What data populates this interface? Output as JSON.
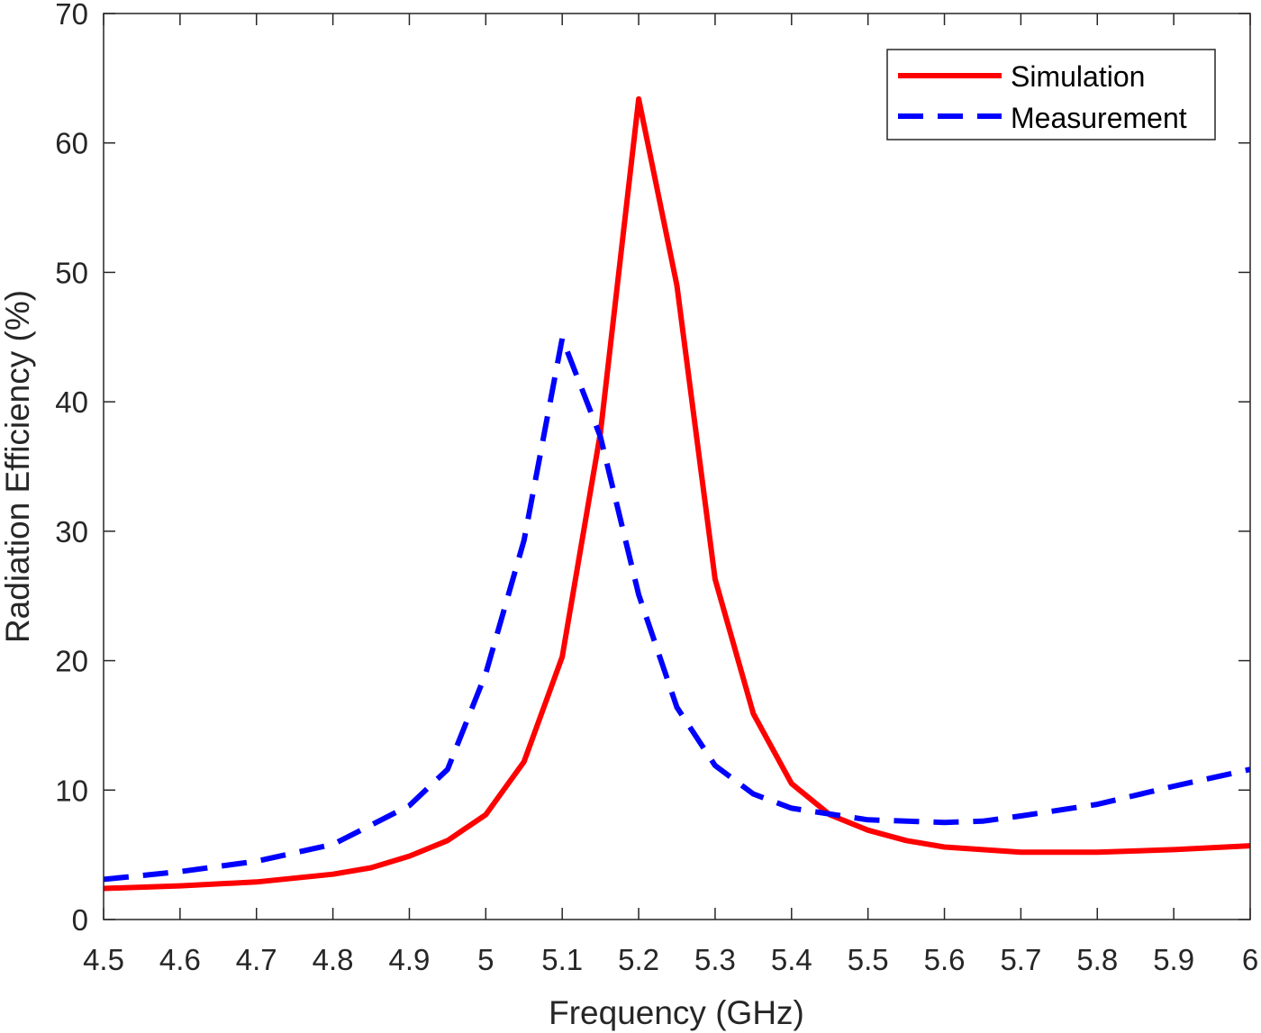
{
  "chart_data": {
    "type": "line",
    "title": "",
    "xlabel": "Frequency (GHz)",
    "ylabel": "Radiation Efficiency (%)",
    "xlim": [
      4.5,
      6
    ],
    "ylim": [
      0,
      70
    ],
    "xticks": [
      "4.5",
      "4.6",
      "4.7",
      "4.8",
      "4.9",
      "5",
      "5.1",
      "5.2",
      "5.3",
      "5.4",
      "5.5",
      "5.6",
      "5.7",
      "5.8",
      "5.9",
      "6"
    ],
    "yticks": [
      "0",
      "10",
      "20",
      "30",
      "40",
      "50",
      "60",
      "70"
    ],
    "grid": false,
    "legend_position": "top-right",
    "series": [
      {
        "name": "Simulation",
        "color": "#ff0000",
        "style": "solid",
        "x": [
          4.5,
          4.6,
          4.7,
          4.8,
          4.85,
          4.9,
          4.95,
          5.0,
          5.05,
          5.1,
          5.15,
          5.2,
          5.25,
          5.3,
          5.35,
          5.4,
          5.45,
          5.5,
          5.55,
          5.6,
          5.7,
          5.8,
          5.9,
          6.0
        ],
        "y": [
          2.4,
          2.6,
          2.9,
          3.5,
          4.0,
          4.9,
          6.1,
          8.1,
          12.2,
          20.3,
          37.6,
          63.4,
          49.0,
          26.3,
          15.9,
          10.5,
          8.1,
          6.9,
          6.1,
          5.6,
          5.2,
          5.2,
          5.4,
          5.7
        ]
      },
      {
        "name": "Measurement",
        "color": "#0000ff",
        "style": "dashed",
        "x": [
          4.5,
          4.6,
          4.7,
          4.8,
          4.9,
          4.95,
          5.0,
          5.05,
          5.1,
          5.15,
          5.2,
          5.25,
          5.3,
          5.35,
          5.4,
          5.5,
          5.6,
          5.65,
          5.7,
          5.8,
          5.9,
          6.0
        ],
        "y": [
          3.1,
          3.7,
          4.5,
          5.8,
          8.8,
          11.6,
          19.0,
          29.3,
          44.9,
          37.3,
          25.1,
          16.4,
          11.9,
          9.7,
          8.6,
          7.7,
          7.5,
          7.6,
          8.0,
          8.9,
          10.3,
          11.6
        ]
      }
    ]
  }
}
